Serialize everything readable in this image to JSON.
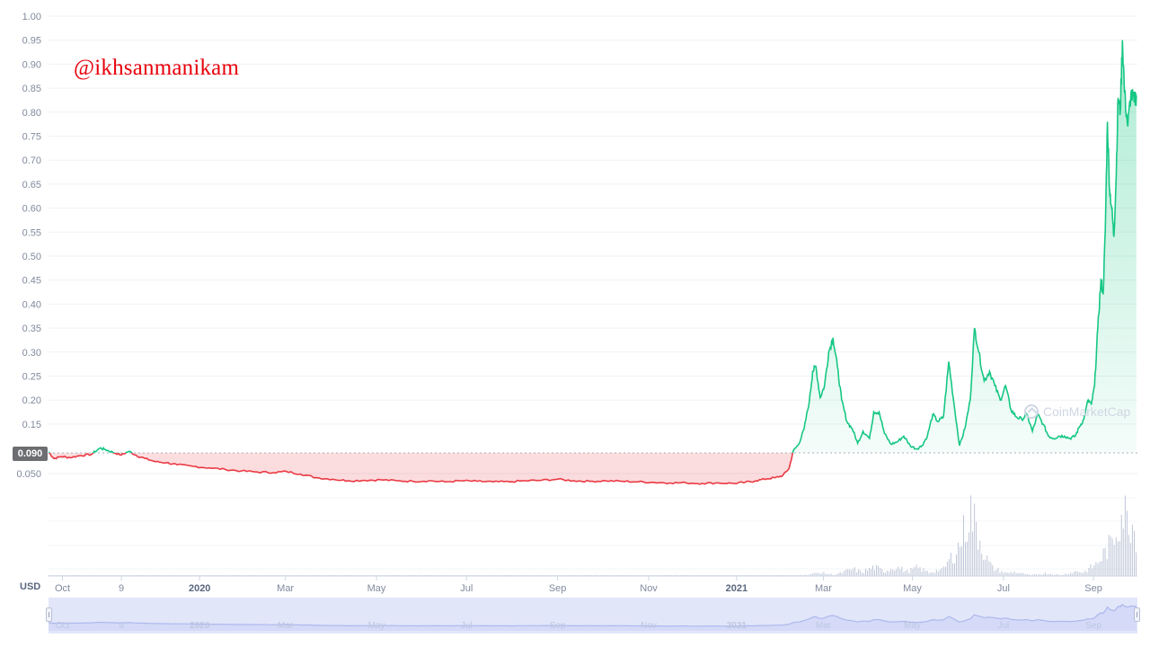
{
  "watermark": "@ikhsanmanikam",
  "brand": {
    "name": "CoinMarketCap",
    "icon": "coinmarketcap-logo-icon"
  },
  "currency_label": "USD",
  "current_price_label": "0.090",
  "colors": {
    "up": "#16c784",
    "down": "#ea3943",
    "watermark": "#e8000b",
    "navigator": "#cfd6f5"
  },
  "chart_data": {
    "type": "line",
    "title": "",
    "xlabel": "",
    "ylabel": "USD",
    "baseline": 0.09,
    "grid": true,
    "legend": "none",
    "y_axis": {
      "upper_scale": {
        "range": [
          0.1,
          1.0
        ],
        "ticks": [
          "1.00",
          "0.95",
          "0.90",
          "0.85",
          "0.80",
          "0.75",
          "0.70",
          "0.65",
          "0.60",
          "0.55",
          "0.50",
          "0.45",
          "0.40",
          "0.35",
          "0.30",
          "0.25",
          "0.20",
          "0.15"
        ]
      },
      "lower_ticks": [
        "0.050"
      ]
    },
    "x_axis": {
      "ticks": [
        {
          "label": "Oct",
          "bold": false,
          "t": 0.013
        },
        {
          "label": "9",
          "bold": false,
          "t": 0.068
        },
        {
          "label": "2020",
          "bold": true,
          "t": 0.141
        },
        {
          "label": "Mar",
          "bold": false,
          "t": 0.221
        },
        {
          "label": "May",
          "bold": false,
          "t": 0.306
        },
        {
          "label": "Jul",
          "bold": false,
          "t": 0.39
        },
        {
          "label": "Sep",
          "bold": false,
          "t": 0.475
        },
        {
          "label": "Nov",
          "bold": false,
          "t": 0.56
        },
        {
          "label": "2021",
          "bold": true,
          "t": 0.642
        },
        {
          "label": "Mar",
          "bold": false,
          "t": 0.723
        },
        {
          "label": "May",
          "bold": false,
          "t": 0.806
        },
        {
          "label": "Jul",
          "bold": false,
          "t": 0.891
        },
        {
          "label": "Sep",
          "bold": false,
          "t": 0.975
        }
      ]
    },
    "series": [
      {
        "values": [
          [
            0.0,
            0.092
          ],
          [
            0.005,
            0.079
          ],
          [
            0.012,
            0.083
          ],
          [
            0.02,
            0.081
          ],
          [
            0.03,
            0.085
          ],
          [
            0.04,
            0.087
          ],
          [
            0.048,
            0.1
          ],
          [
            0.053,
            0.097
          ],
          [
            0.06,
            0.091
          ],
          [
            0.068,
            0.086
          ],
          [
            0.075,
            0.093
          ],
          [
            0.082,
            0.085
          ],
          [
            0.09,
            0.079
          ],
          [
            0.1,
            0.073
          ],
          [
            0.11,
            0.071
          ],
          [
            0.12,
            0.067
          ],
          [
            0.135,
            0.064
          ],
          [
            0.15,
            0.061
          ],
          [
            0.165,
            0.058
          ],
          [
            0.18,
            0.055
          ],
          [
            0.195,
            0.053
          ],
          [
            0.21,
            0.052
          ],
          [
            0.222,
            0.054
          ],
          [
            0.235,
            0.049
          ],
          [
            0.25,
            0.042
          ],
          [
            0.265,
            0.039
          ],
          [
            0.28,
            0.036
          ],
          [
            0.295,
            0.037
          ],
          [
            0.31,
            0.038
          ],
          [
            0.325,
            0.036
          ],
          [
            0.34,
            0.035
          ],
          [
            0.355,
            0.036
          ],
          [
            0.37,
            0.034
          ],
          [
            0.385,
            0.036
          ],
          [
            0.4,
            0.035
          ],
          [
            0.415,
            0.034
          ],
          [
            0.43,
            0.034
          ],
          [
            0.445,
            0.036
          ],
          [
            0.46,
            0.037
          ],
          [
            0.475,
            0.039
          ],
          [
            0.49,
            0.036
          ],
          [
            0.505,
            0.035
          ],
          [
            0.52,
            0.036
          ],
          [
            0.535,
            0.035
          ],
          [
            0.55,
            0.034
          ],
          [
            0.565,
            0.033
          ],
          [
            0.58,
            0.032
          ],
          [
            0.595,
            0.032
          ],
          [
            0.61,
            0.031
          ],
          [
            0.625,
            0.032
          ],
          [
            0.64,
            0.031
          ],
          [
            0.65,
            0.033
          ],
          [
            0.66,
            0.036
          ],
          [
            0.67,
            0.04
          ],
          [
            0.678,
            0.042
          ],
          [
            0.685,
            0.046
          ],
          [
            0.691,
            0.06
          ],
          [
            0.695,
            0.095
          ],
          [
            0.7,
            0.108
          ],
          [
            0.705,
            0.14
          ],
          [
            0.71,
            0.2
          ],
          [
            0.713,
            0.26
          ],
          [
            0.716,
            0.27
          ],
          [
            0.72,
            0.205
          ],
          [
            0.724,
            0.23
          ],
          [
            0.728,
            0.3
          ],
          [
            0.732,
            0.33
          ],
          [
            0.736,
            0.27
          ],
          [
            0.74,
            0.2
          ],
          [
            0.745,
            0.155
          ],
          [
            0.75,
            0.14
          ],
          [
            0.755,
            0.11
          ],
          [
            0.76,
            0.135
          ],
          [
            0.766,
            0.12
          ],
          [
            0.77,
            0.175
          ],
          [
            0.775,
            0.175
          ],
          [
            0.78,
            0.13
          ],
          [
            0.786,
            0.108
          ],
          [
            0.792,
            0.113
          ],
          [
            0.798,
            0.125
          ],
          [
            0.804,
            0.105
          ],
          [
            0.81,
            0.098
          ],
          [
            0.815,
            0.105
          ],
          [
            0.82,
            0.125
          ],
          [
            0.825,
            0.17
          ],
          [
            0.83,
            0.155
          ],
          [
            0.835,
            0.165
          ],
          [
            0.84,
            0.28
          ],
          [
            0.845,
            0.19
          ],
          [
            0.85,
            0.105
          ],
          [
            0.855,
            0.14
          ],
          [
            0.86,
            0.2
          ],
          [
            0.864,
            0.35
          ],
          [
            0.868,
            0.3
          ],
          [
            0.873,
            0.24
          ],
          [
            0.878,
            0.26
          ],
          [
            0.883,
            0.23
          ],
          [
            0.888,
            0.2
          ],
          [
            0.893,
            0.23
          ],
          [
            0.898,
            0.18
          ],
          [
            0.903,
            0.165
          ],
          [
            0.908,
            0.16
          ],
          [
            0.913,
            0.17
          ],
          [
            0.918,
            0.135
          ],
          [
            0.923,
            0.17
          ],
          [
            0.928,
            0.15
          ],
          [
            0.933,
            0.125
          ],
          [
            0.938,
            0.12
          ],
          [
            0.943,
            0.125
          ],
          [
            0.948,
            0.125
          ],
          [
            0.953,
            0.12
          ],
          [
            0.958,
            0.125
          ],
          [
            0.962,
            0.145
          ],
          [
            0.966,
            0.16
          ],
          [
            0.97,
            0.2
          ],
          [
            0.973,
            0.19
          ],
          [
            0.976,
            0.23
          ],
          [
            0.979,
            0.35
          ],
          [
            0.982,
            0.45
          ],
          [
            0.984,
            0.42
          ],
          [
            0.986,
            0.55
          ],
          [
            0.988,
            0.78
          ],
          [
            0.99,
            0.64
          ],
          [
            0.992,
            0.6
          ],
          [
            0.994,
            0.54
          ],
          [
            0.996,
            0.65
          ],
          [
            0.998,
            0.83
          ],
          [
            1.0,
            0.8
          ],
          [
            1.002,
            0.95
          ],
          [
            1.004,
            0.84
          ],
          [
            1.007,
            0.77
          ],
          [
            1.01,
            0.84
          ],
          [
            1.013,
            0.82
          ],
          [
            1.015,
            0.835
          ]
        ]
      }
    ],
    "volume_peaks": [
      [
        0.72,
        0.05
      ],
      [
        0.75,
        0.1
      ],
      [
        0.77,
        0.13
      ],
      [
        0.79,
        0.14
      ],
      [
        0.81,
        0.12
      ],
      [
        0.83,
        0.09
      ],
      [
        0.845,
        0.2
      ],
      [
        0.85,
        0.45
      ],
      [
        0.86,
        0.95
      ],
      [
        0.865,
        0.5
      ],
      [
        0.87,
        0.15
      ],
      [
        0.88,
        0.12
      ],
      [
        0.9,
        0.06
      ],
      [
        0.93,
        0.04
      ],
      [
        0.96,
        0.07
      ],
      [
        0.98,
        0.2
      ],
      [
        0.99,
        0.45
      ],
      [
        1.0,
        0.75
      ],
      [
        1.002,
        1.0
      ],
      [
        1.008,
        0.9
      ],
      [
        1.012,
        0.6
      ],
      [
        1.015,
        0.3
      ]
    ]
  }
}
